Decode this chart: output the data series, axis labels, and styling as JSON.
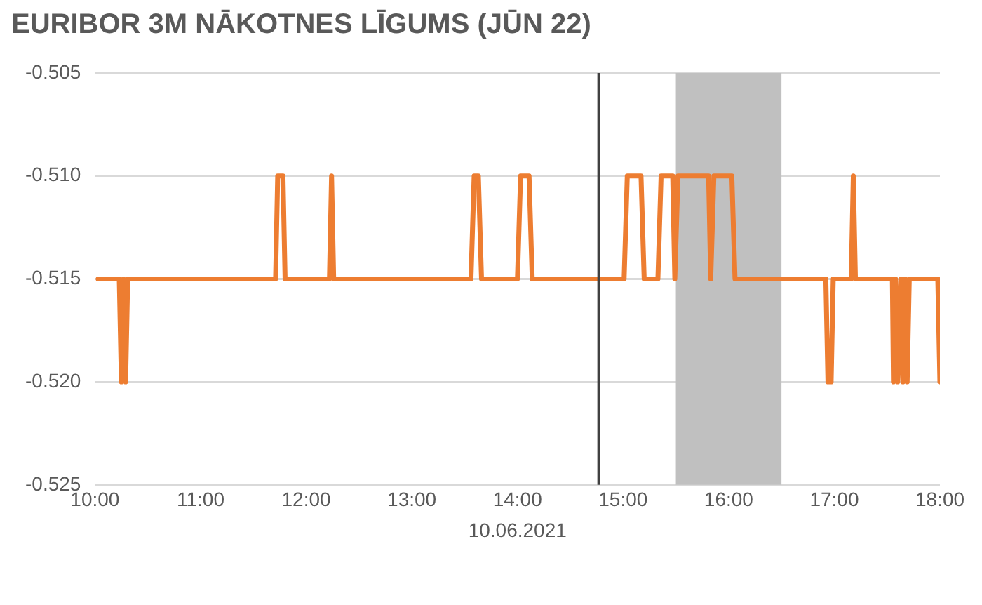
{
  "chart_data": {
    "type": "line",
    "title": "EURIBOR 3M NĀKOTNES LĪGUMS (JŪN 22)",
    "xlabel": "10.06.2021",
    "series": [
      {
        "color": "#ed7d31",
        "x": [
          10.03,
          10.23,
          10.25,
          10.27,
          10.29,
          10.31,
          11.71,
          11.73,
          11.78,
          11.8,
          12.22,
          12.24,
          12.26,
          13.56,
          13.59,
          13.63,
          13.66,
          14.0,
          14.03,
          14.11,
          14.14,
          15.01,
          15.04,
          15.17,
          15.2,
          15.33,
          15.36,
          15.47,
          15.49,
          15.52,
          15.81,
          15.83,
          15.86,
          16.03,
          16.06,
          16.92,
          16.94,
          16.97,
          16.99,
          17.16,
          17.18,
          17.2,
          17.55,
          17.56,
          17.58,
          17.6,
          17.63,
          17.65,
          17.67,
          17.69,
          17.71,
          17.98,
          18.0
        ],
        "values": [
          -0.515,
          -0.515,
          -0.52,
          -0.515,
          -0.52,
          -0.515,
          -0.515,
          -0.51,
          -0.51,
          -0.515,
          -0.515,
          -0.51,
          -0.515,
          -0.515,
          -0.51,
          -0.51,
          -0.515,
          -0.515,
          -0.51,
          -0.51,
          -0.515,
          -0.515,
          -0.51,
          -0.51,
          -0.515,
          -0.515,
          -0.51,
          -0.51,
          -0.515,
          -0.51,
          -0.51,
          -0.515,
          -0.51,
          -0.51,
          -0.515,
          -0.515,
          -0.52,
          -0.52,
          -0.515,
          -0.515,
          -0.51,
          -0.515,
          -0.515,
          -0.52,
          -0.515,
          -0.52,
          -0.515,
          -0.52,
          -0.515,
          -0.52,
          -0.515,
          -0.515,
          -0.52
        ]
      }
    ],
    "xlim": [
      10,
      18
    ],
    "xticks": [
      {
        "value": 10,
        "label": "10:00"
      },
      {
        "value": 11,
        "label": "11:00"
      },
      {
        "value": 12,
        "label": "12:00"
      },
      {
        "value": 13,
        "label": "13:00"
      },
      {
        "value": 14,
        "label": "14:00"
      },
      {
        "value": 15,
        "label": "15:00"
      },
      {
        "value": 16,
        "label": "16:00"
      },
      {
        "value": 17,
        "label": "17:00"
      },
      {
        "value": 18,
        "label": "18:00"
      }
    ],
    "ylim": [
      -0.525,
      -0.505
    ],
    "yticks": [
      {
        "value": -0.525,
        "label": "-0.525"
      },
      {
        "value": -0.52,
        "label": "-0.520"
      },
      {
        "value": -0.515,
        "label": "-0.515"
      },
      {
        "value": -0.51,
        "label": "-0.510"
      },
      {
        "value": -0.505,
        "label": "-0.505"
      }
    ],
    "ref_lines": [
      {
        "axis": "x",
        "value": 14.77,
        "color": "#404040"
      }
    ],
    "bands": [
      {
        "axis": "x",
        "from": 15.5,
        "to": 16.5,
        "color": "#c0c0c0"
      }
    ],
    "grid": "y",
    "legend": false,
    "marker": "none",
    "line_style": "solid"
  }
}
